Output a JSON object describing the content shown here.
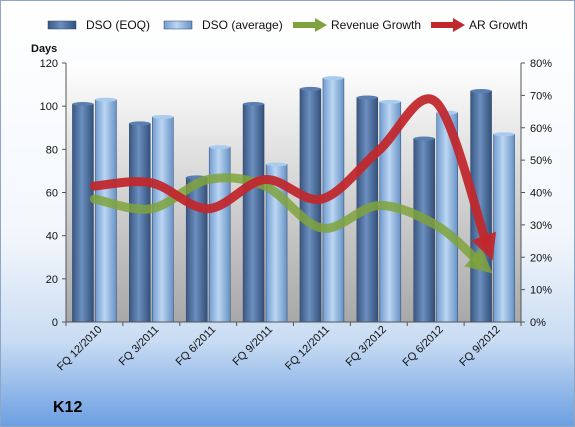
{
  "chart_data": {
    "type": "bar",
    "title": "",
    "company": "K12",
    "ylabel": "Days",
    "ylim": [
      0,
      120
    ],
    "yticks": [
      0,
      20,
      40,
      60,
      80,
      100,
      120
    ],
    "y2lim": [
      0,
      80
    ],
    "y2ticks": [
      "0%",
      "10%",
      "20%",
      "30%",
      "40%",
      "50%",
      "60%",
      "70%",
      "80%"
    ],
    "categories": [
      "FQ 12/2010",
      "FQ 3/2011",
      "FQ 6/2011",
      "FQ 9/2011",
      "FQ 12/2011",
      "FQ 3/2012",
      "FQ 6/2012",
      "FQ 9/2012"
    ],
    "legend_position": "top",
    "grid": false,
    "series": [
      {
        "name": "DSO (EOQ)",
        "kind": "bar",
        "axis": "left",
        "color": "#4a6c9b",
        "values": [
          101,
          92,
          67,
          101,
          108,
          104,
          85,
          107
        ]
      },
      {
        "name": "DSO (average)",
        "kind": "bar",
        "axis": "left",
        "color": "#8ab4e0",
        "values": [
          103,
          95,
          81,
          73,
          113,
          102,
          97,
          87
        ]
      },
      {
        "name": "Revenue Growth",
        "kind": "arrow-line",
        "axis": "right",
        "unit": "%",
        "color": "#7fa33c",
        "values": [
          38,
          35,
          44,
          42,
          29,
          36,
          30,
          15
        ]
      },
      {
        "name": "AR Growth",
        "kind": "arrow-line",
        "axis": "right",
        "unit": "%",
        "color": "#c0282d",
        "values": [
          42,
          43,
          35,
          44,
          38,
          53,
          68,
          19
        ]
      }
    ]
  }
}
